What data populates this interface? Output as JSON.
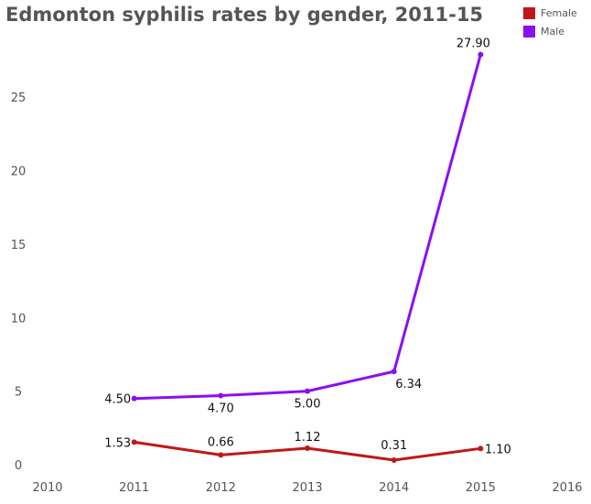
{
  "chart_data": {
    "type": "line",
    "title": "Edmonton syphilis rates by gender, 2011-15",
    "xlabel": "",
    "ylabel": "",
    "x_ticks": [
      "2010",
      "2011",
      "2012",
      "2013",
      "2014",
      "2015",
      "2016"
    ],
    "y_ticks": [
      "0",
      "5",
      "10",
      "15",
      "20",
      "25"
    ],
    "xlim": [
      2010,
      2016
    ],
    "ylim": [
      0,
      28
    ],
    "grid": false,
    "legend_position": "top-right",
    "x": [
      2011,
      2012,
      2013,
      2014,
      2015
    ],
    "series": [
      {
        "name": "Female",
        "color": "#c01818",
        "values": [
          1.53,
          0.66,
          1.12,
          0.31,
          1.1
        ],
        "labels": [
          "1.53",
          "0.66",
          "1.12",
          "0.31",
          "1.10"
        ]
      },
      {
        "name": "Male",
        "color": "#8a10f0",
        "values": [
          4.5,
          4.7,
          5.0,
          6.34,
          27.9
        ],
        "labels": [
          "4.50",
          "4.70",
          "5.00",
          "6.34",
          "27.90"
        ]
      }
    ]
  }
}
